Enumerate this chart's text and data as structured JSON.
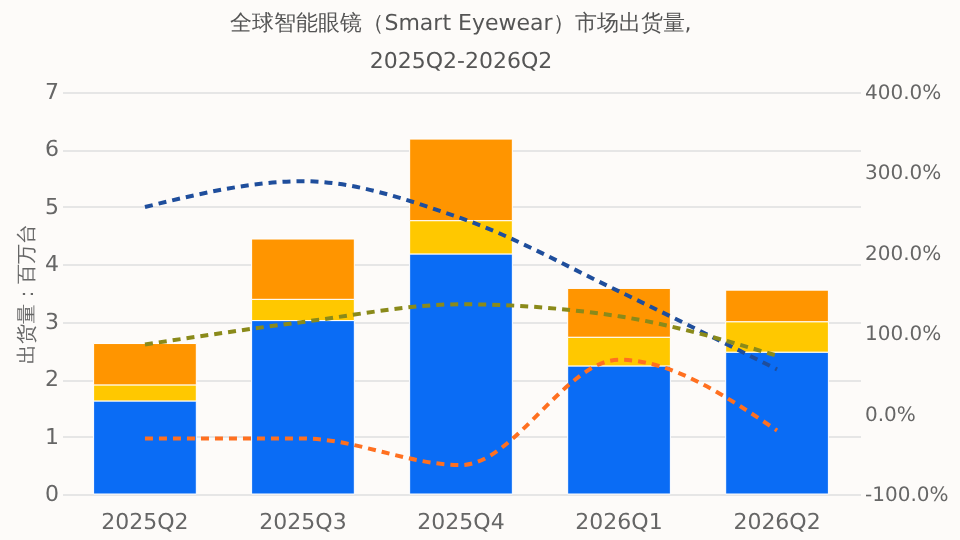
{
  "chart_data": {
    "type": "bar",
    "title": "全球智能眼镜（Smart Eyewear）市场出货量,",
    "subtitle": "2025Q2-2026Q2",
    "ylabel": "出货量：百万台",
    "categories": [
      "2025Q2",
      "2025Q3",
      "2025Q4",
      "2026Q1",
      "2026Q2"
    ],
    "stacked": true,
    "grid": "y",
    "ylim": [
      0,
      7
    ],
    "yticks": [
      0,
      1,
      2,
      3,
      4,
      5,
      6,
      7
    ],
    "y2lim": [
      -100,
      400
    ],
    "y2ticks": [
      {
        "value": -100,
        "label": "-100.0%"
      },
      {
        "value": 0,
        "label": "0.0%"
      },
      {
        "value": 100,
        "label": "100.0%"
      },
      {
        "value": 200,
        "label": "200.0%"
      },
      {
        "value": 300,
        "label": "300.0%"
      },
      {
        "value": 400,
        "label": "400.0%"
      }
    ],
    "series": [
      {
        "color": "#0a6cf5",
        "values": [
          1.62,
          3.02,
          4.18,
          2.23,
          2.47
        ]
      },
      {
        "color": "#ffc800",
        "values": [
          0.28,
          0.37,
          0.58,
          0.5,
          0.53
        ]
      },
      {
        "color": "#ff9500",
        "values": [
          0.72,
          1.05,
          1.42,
          0.85,
          0.55
        ]
      },
      {
        "type": "line",
        "axis": "y2",
        "line_style": "dashed",
        "color": "#1f4e9c",
        "values": [
          257,
          289,
          243,
          152,
          55
        ]
      },
      {
        "type": "line",
        "axis": "y2",
        "line_style": "dashed",
        "color": "#8a8a1a",
        "values": [
          86,
          114,
          136,
          121,
          72
        ]
      },
      {
        "type": "line",
        "axis": "y2",
        "line_style": "dashed",
        "color": "#ff7020",
        "values": [
          -31,
          -31,
          -64,
          67,
          -21
        ]
      }
    ]
  }
}
